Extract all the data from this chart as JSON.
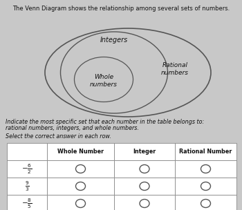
{
  "title_text": "The Venn Diagram shows the relationship among several sets of numbers.",
  "venn_label_outer": "Rational\nnumbers",
  "venn_label_middle": "Integers",
  "venn_label_inner": "Whole\nnumbers",
  "instruction1": "Indicate the most specific set that each number in the table belongs to:",
  "instruction2": "rational numbers, integers, and whole numbers.",
  "instruction3": "Select the correct answer in each row.",
  "col_headers": [
    "Whole Number",
    "Integer",
    "Rational Number"
  ],
  "row_label_fracs": [
    "$-\\frac{6}{2}$",
    "$\\frac{9}{3}$",
    "$-\\frac{8}{5}$"
  ],
  "bg_color": "#c8c8c8",
  "text_color": "#111111",
  "edge_color": "#555555"
}
